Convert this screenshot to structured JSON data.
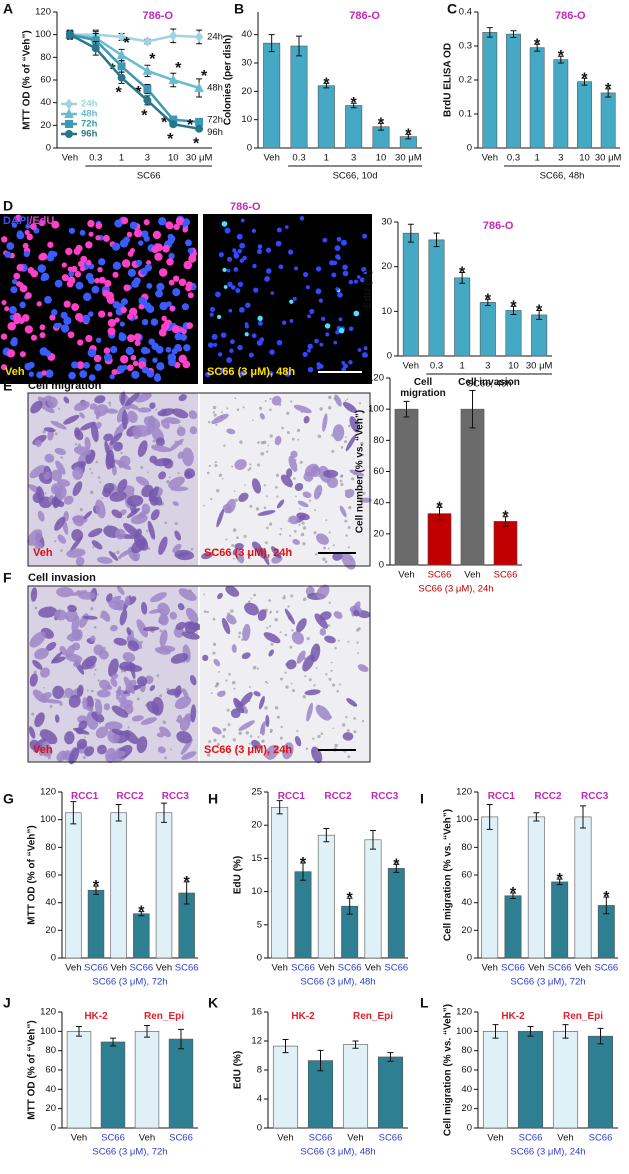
{
  "chart_data": [
    {
      "type": "line",
      "panel": "A",
      "title": "786-O",
      "title_color": "#c22ab8",
      "categories": [
        "Veh",
        "0.3",
        "1",
        "3",
        "10",
        "30 μM"
      ],
      "x_label": "SC66",
      "y_label": "MTT OD (% of “Veh”)",
      "ylim": [
        0,
        120
      ],
      "yticks": [
        0,
        20,
        40,
        60,
        80,
        100,
        120
      ],
      "series": [
        {
          "name": "24h",
          "color": "#9fd3e3",
          "marker": "diamond",
          "values": [
            100,
            100,
            98,
            94,
            99,
            98
          ],
          "errors": [
            4,
            4,
            3,
            2,
            6,
            6
          ]
        },
        {
          "name": "48h",
          "color": "#68bcd2",
          "marker": "triangle",
          "values": [
            100,
            97,
            82,
            68,
            60,
            53
          ],
          "errors": [
            3,
            6,
            5,
            5,
            6,
            8
          ],
          "significance": [
            null,
            null,
            "*",
            "*",
            "*",
            "*"
          ]
        },
        {
          "name": "72h",
          "color": "#3a9ab4",
          "marker": "square",
          "values": [
            100,
            95,
            72,
            52,
            25,
            23
          ],
          "errors": [
            3,
            6,
            5,
            4,
            3,
            2
          ],
          "significance": [
            null,
            null,
            "*",
            "*",
            "*",
            "*"
          ]
        },
        {
          "name": "96h",
          "color": "#27778b",
          "marker": "circle",
          "values": [
            100,
            88,
            62,
            42,
            21,
            17
          ],
          "errors": [
            3,
            6,
            5,
            4,
            2,
            2
          ],
          "significance": [
            null,
            null,
            "*",
            "*",
            "*",
            "*"
          ]
        }
      ]
    },
    {
      "type": "bar",
      "panel": "B",
      "title": "786-O",
      "title_color": "#c22ab8",
      "categories": [
        "Veh",
        "0.3",
        "1",
        "3",
        "10",
        "30 μM"
      ],
      "x_label": "SC66, 10d",
      "y_label": "Colonies (per dish)",
      "ylim": [
        0,
        48
      ],
      "yticks": [
        0,
        10,
        20,
        30,
        40
      ],
      "color": "#45a9c6",
      "values": [
        37,
        36,
        22,
        15,
        7.5,
        4
      ],
      "errors": [
        3,
        3.5,
        0.8,
        0.8,
        1.2,
        0.8
      ],
      "significance": [
        null,
        null,
        "*",
        "*",
        "*",
        "*"
      ]
    },
    {
      "type": "bar",
      "panel": "C",
      "title": "786-O",
      "title_color": "#c22ab8",
      "categories": [
        "Veh",
        "0.3",
        "1",
        "3",
        "10",
        "30 μM"
      ],
      "x_label": "SC66, 48h",
      "y_label": "BrdU ELISA OD",
      "ylim": [
        0,
        0.4
      ],
      "yticks": [
        0,
        0.1,
        0.2,
        0.3,
        0.4
      ],
      "color": "#45a9c6",
      "values": [
        0.34,
        0.335,
        0.295,
        0.26,
        0.195,
        0.162
      ],
      "errors": [
        0.014,
        0.01,
        0.01,
        0.01,
        0.01,
        0.012
      ],
      "significance": [
        null,
        null,
        "*",
        "*",
        "*",
        "*"
      ]
    },
    {
      "type": "bar",
      "title": "786-O",
      "title_color": "#c22ab8",
      "categories": [
        "Veh",
        "0.3",
        "1",
        "3",
        "10",
        "30 μM"
      ],
      "x_label": "SC66, 48h",
      "y_label": "EdU (%)",
      "ylim": [
        0,
        30
      ],
      "yticks": [
        0,
        10,
        20,
        30
      ],
      "color": "#45a9c6",
      "values": [
        27.5,
        26,
        17.5,
        12,
        10.2,
        9.2
      ],
      "errors": [
        2,
        1.5,
        1.2,
        0.7,
        0.9,
        1
      ],
      "significance": [
        null,
        null,
        "*",
        "*",
        "*",
        "*"
      ]
    },
    {
      "type": "bar",
      "categories": [
        "Veh",
        "SC66",
        "Veh",
        "SC66"
      ],
      "category_colors": [
        "#111111",
        "#c00000",
        "#111111",
        "#c00000"
      ],
      "groups": [
        "Cell migration",
        "Cell invasion"
      ],
      "group_color": "#111111",
      "x_label": "SC66 (3 μM), 24h",
      "x_label_color": "#c00000",
      "y_label": "Cell number (% vs. “Veh”)",
      "ylim": [
        0,
        120
      ],
      "yticks": [
        0,
        20,
        40,
        60,
        80,
        100,
        120
      ],
      "colors": [
        "#6b6b6b",
        "#c00000",
        "#6b6b6b",
        "#c00000"
      ],
      "values": [
        100,
        33,
        100,
        28
      ],
      "errors": [
        5,
        4,
        12,
        3
      ],
      "significance": [
        null,
        "*",
        null,
        "*"
      ]
    },
    {
      "type": "bar",
      "panel": "G",
      "categories": [
        "Veh",
        "SC66",
        "Veh",
        "SC66",
        "Veh",
        "SC66"
      ],
      "category_colors": [
        "#111111",
        "#2b3fd1",
        "#111111",
        "#2b3fd1",
        "#111111",
        "#2b3fd1"
      ],
      "groups": [
        "RCC1",
        "RCC2",
        "RCC3"
      ],
      "group_color": "#c22ab8",
      "x_label": "SC66 (3 μM), 72h",
      "x_label_color": "#2b3fd1",
      "y_label": "MTT OD (% of “Veh”)",
      "ylim": [
        0,
        120
      ],
      "yticks": [
        0,
        20,
        40,
        60,
        80,
        100,
        120
      ],
      "colors": [
        "#dff1f6",
        "#2f7f93",
        "#dff1f6",
        "#2f7f93",
        "#dff1f6",
        "#2f7f93"
      ],
      "values": [
        105,
        49,
        105,
        32,
        105,
        47
      ],
      "errors": [
        8,
        3,
        6,
        1.5,
        7,
        8
      ],
      "significance": [
        null,
        "*",
        null,
        "*",
        null,
        "*"
      ]
    },
    {
      "type": "bar",
      "panel": "H",
      "categories": [
        "Veh",
        "SC66",
        "Veh",
        "SC66",
        "Veh",
        "SC66"
      ],
      "category_colors": [
        "#111111",
        "#2b3fd1",
        "#111111",
        "#2b3fd1",
        "#111111",
        "#2b3fd1"
      ],
      "groups": [
        "RCC1",
        "RCC2",
        "RCC3"
      ],
      "group_color": "#c22ab8",
      "x_label": "SC66 (3 μM), 48h",
      "x_label_color": "#2b3fd1",
      "y_label": "EdU (%)",
      "ylim": [
        0,
        25
      ],
      "yticks": [
        0,
        5,
        10,
        15,
        20,
        25
      ],
      "colors": [
        "#dff1f6",
        "#2f7f93",
        "#dff1f6",
        "#2f7f93",
        "#dff1f6",
        "#2f7f93"
      ],
      "values": [
        22.7,
        13,
        18.5,
        7.8,
        17.8,
        13.5
      ],
      "errors": [
        1,
        1.3,
        1,
        1.2,
        1.4,
        0.6
      ],
      "significance": [
        null,
        "*",
        null,
        "*",
        null,
        "*"
      ]
    },
    {
      "type": "bar",
      "panel": "I",
      "categories": [
        "Veh",
        "SC66",
        "Veh",
        "SC66",
        "Veh",
        "SC66"
      ],
      "category_colors": [
        "#111111",
        "#2b3fd1",
        "#111111",
        "#2b3fd1",
        "#111111",
        "#2b3fd1"
      ],
      "groups": [
        "RCC1",
        "RCC2",
        "RCC3"
      ],
      "group_color": "#c22ab8",
      "x_label": "SC66 (3 μM), 72h",
      "x_label_color": "#2b3fd1",
      "y_label": "Cell migration (% vs. “Veh”)",
      "ylim": [
        0,
        120
      ],
      "yticks": [
        0,
        20,
        40,
        60,
        80,
        100,
        120
      ],
      "colors": [
        "#dff1f6",
        "#2f7f93",
        "#dff1f6",
        "#2f7f93",
        "#dff1f6",
        "#2f7f93"
      ],
      "values": [
        102,
        45,
        102,
        55,
        102,
        38
      ],
      "errors": [
        9,
        2,
        3,
        2,
        8,
        6
      ],
      "significance": [
        null,
        "*",
        null,
        "*",
        null,
        "*"
      ]
    },
    {
      "type": "bar",
      "panel": "J",
      "categories": [
        "Veh",
        "SC66",
        "Veh",
        "SC66"
      ],
      "category_colors": [
        "#111111",
        "#2b3fd1",
        "#111111",
        "#2b3fd1"
      ],
      "groups": [
        "HK-2",
        "Ren_Epi"
      ],
      "group_color": "#e0202a",
      "x_label": "SC66 (3 μM), 72h",
      "x_label_color": "#2b3fd1",
      "y_label": "MTT OD (% of “Veh”)",
      "ylim": [
        0,
        120
      ],
      "yticks": [
        0,
        20,
        40,
        60,
        80,
        100,
        120
      ],
      "colors": [
        "#dff1f6",
        "#2f7f93",
        "#dff1f6",
        "#2f7f93"
      ],
      "values": [
        100,
        89,
        100,
        92
      ],
      "errors": [
        5,
        4,
        6,
        10
      ]
    },
    {
      "type": "bar",
      "panel": "K",
      "categories": [
        "Veh",
        "SC66",
        "Veh",
        "SC66"
      ],
      "category_colors": [
        "#111111",
        "#2b3fd1",
        "#111111",
        "#2b3fd1"
      ],
      "groups": [
        "HK-2",
        "Ren_Epi"
      ],
      "group_color": "#e0202a",
      "x_label": "SC66 (3 μM), 48h",
      "x_label_color": "#2b3fd1",
      "y_label": "EdU (%)",
      "ylim": [
        0,
        16
      ],
      "yticks": [
        0,
        4,
        8,
        12,
        16
      ],
      "colors": [
        "#dff1f6",
        "#2f7f93",
        "#dff1f6",
        "#2f7f93"
      ],
      "values": [
        11.3,
        9.3,
        11.5,
        9.8
      ],
      "errors": [
        0.9,
        1.4,
        0.5,
        0.6
      ]
    },
    {
      "type": "bar",
      "panel": "L",
      "categories": [
        "Veh",
        "SC66",
        "Veh",
        "SC66"
      ],
      "category_colors": [
        "#111111",
        "#2b3fd1",
        "#111111",
        "#2b3fd1"
      ],
      "groups": [
        "HK-2",
        "Ren_Epi"
      ],
      "group_color": "#e0202a",
      "x_label": "SC66 (3 μM), 24h",
      "x_label_color": "#2b3fd1",
      "y_label": "Cell migration (% vs. “Veh”)",
      "ylim": [
        0,
        120
      ],
      "yticks": [
        0,
        20,
        40,
        60,
        80,
        100,
        120
      ],
      "colors": [
        "#dff1f6",
        "#2f7f93",
        "#dff1f6",
        "#2f7f93"
      ],
      "values": [
        100,
        100,
        100,
        95
      ],
      "errors": [
        7,
        5,
        7,
        8
      ]
    }
  ],
  "image_panels": {
    "D": {
      "letter": "D",
      "stain_dapi": "DAPI",
      "stain_edu": "/EdU",
      "title": "786-O",
      "left_label": "Veh",
      "right_label": "SC66 (3 μM), 48h"
    },
    "E": {
      "letter": "E",
      "title": "Cell migration",
      "left_label": "Veh",
      "right_label": "SC66 (3 μM), 24h"
    },
    "F": {
      "letter": "F",
      "title": "Cell invasion",
      "left_label": "Veh",
      "right_label": "SC66 (3 μM), 24h"
    }
  }
}
